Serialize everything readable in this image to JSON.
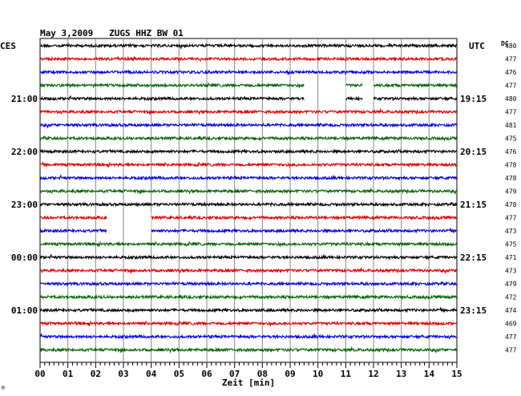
{
  "chart_data": {
    "type": "line",
    "title": "May 3,2009   ZUGS HHZ BW 01",
    "left_axis_label": "CES",
    "right_axis_label": "UTC",
    "dc_label": "DC",
    "xlabel": "Zeit [min]",
    "xlim": [
      0,
      15
    ],
    "x_ticks": [
      "00",
      "01",
      "02",
      "03",
      "04",
      "05",
      "06",
      "07",
      "08",
      "09",
      "10",
      "11",
      "12",
      "13",
      "14",
      "15"
    ],
    "left_time_labels": [
      {
        "row": 4,
        "label": "21:00"
      },
      {
        "row": 8,
        "label": "22:00"
      },
      {
        "row": 12,
        "label": "23:00"
      },
      {
        "row": 16,
        "label": "00:00"
      },
      {
        "row": 20,
        "label": "01:00"
      }
    ],
    "right_time_labels": [
      {
        "row": 4,
        "label": "19:15"
      },
      {
        "row": 8,
        "label": "20:15"
      },
      {
        "row": 12,
        "label": "21:15"
      },
      {
        "row": 16,
        "label": "22:15"
      },
      {
        "row": 20,
        "label": "23:15"
      }
    ],
    "dc_offsets": [
      "480",
      "477",
      "476",
      "477",
      "480",
      "477",
      "481",
      "475",
      "476",
      "478",
      "478",
      "479",
      "478",
      "477",
      "473",
      "475",
      "471",
      "473",
      "479",
      "472",
      "474",
      "469",
      "477",
      "477"
    ],
    "trace_colors": [
      "#000000",
      "#e00000",
      "#0000e0",
      "#006400"
    ],
    "gaps": [
      {
        "row": 3,
        "from_min": 9.5,
        "to_min": 11.0
      },
      {
        "row": 3,
        "from_min": 11.6,
        "to_min": 12.0
      },
      {
        "row": 13,
        "from_min": 2.4,
        "to_min": 4.0
      }
    ],
    "grid": true
  },
  "corner_mark": "M"
}
